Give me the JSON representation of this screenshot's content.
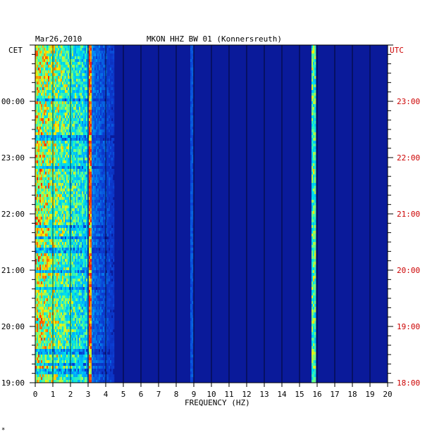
{
  "chart_data": {
    "type": "heatmap",
    "date": "Mar26,2010",
    "title": "MKON HHZ BW 01 (Konnersreuth)",
    "xlabel": "FREQUENCY (HZ)",
    "left_axis_label": "CET",
    "right_axis_label": "UTC",
    "x_range": [
      0,
      20
    ],
    "x_ticks": [
      "0",
      "1",
      "2",
      "3",
      "4",
      "5",
      "6",
      "7",
      "8",
      "9",
      "10",
      "11",
      "12",
      "13",
      "14",
      "15",
      "16",
      "17",
      "18",
      "19",
      "20"
    ],
    "left_ticks": [
      "19:00",
      "20:00",
      "21:00",
      "22:00",
      "23:00",
      "00:00"
    ],
    "right_ticks": [
      "18:00",
      "19:00",
      "20:00",
      "21:00",
      "22:00",
      "23:00"
    ],
    "time_range_utc": [
      "18:00",
      "24:00"
    ],
    "grid": true,
    "colors": {
      "background": "#0a1a9a",
      "low": "#0b23b8",
      "mid": "#00c8ff",
      "high": "#ffee00",
      "peak": "#ff2200",
      "utc_text": "#cc0000"
    },
    "features": [
      {
        "name": "low-frequency band",
        "freq_hz": [
          0,
          3
        ],
        "intensity": "high"
      },
      {
        "name": "line 3 Hz",
        "freq_hz": 3.1,
        "intensity": "peak"
      },
      {
        "name": "line 8.9 Hz",
        "freq_hz": 8.9,
        "intensity": "medium"
      },
      {
        "name": "line 15.8 Hz",
        "freq_hz": 15.8,
        "intensity": "high"
      }
    ],
    "corner_mark": "*"
  }
}
